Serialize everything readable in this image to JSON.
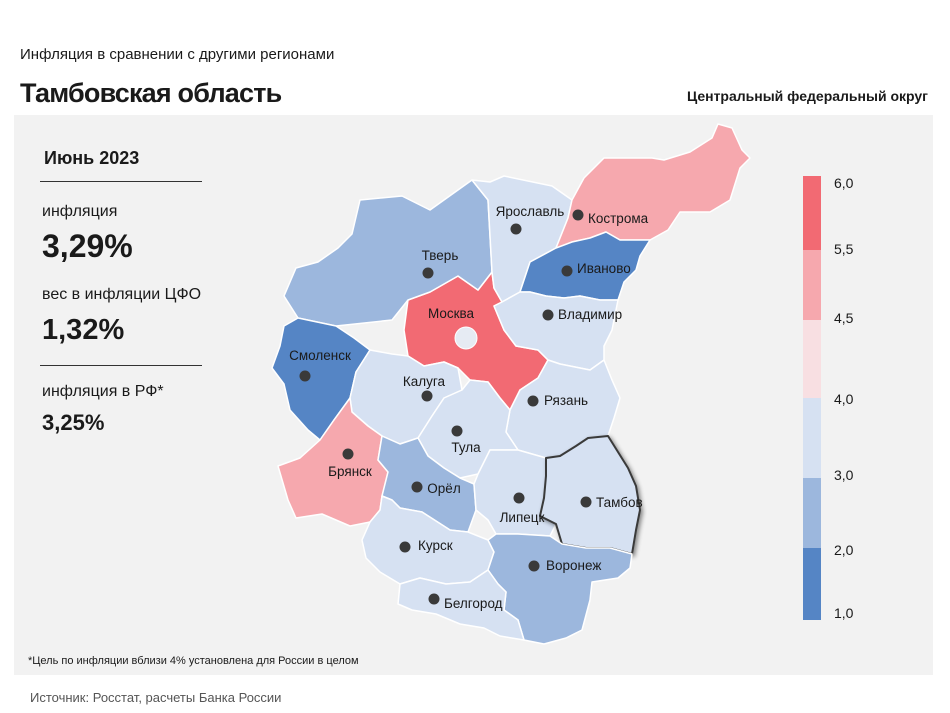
{
  "header": {
    "supertitle": "Инфляция  в сравнении  с другими  регионами",
    "title": "Тамбовская область",
    "district": "Центральный федеральный округ"
  },
  "summary": {
    "period": "Июнь 2023",
    "inflation_label": "инфляция",
    "inflation_value": "3,29%",
    "weight_label": "вес в инфляции  ЦФО",
    "weight_value": "1,32%",
    "rf_label": "инфляция  в РФ*",
    "rf_value": "3,25%"
  },
  "legend": {
    "ticks": [
      "1,0",
      "2,0",
      "3,0",
      "4,0",
      "4,5",
      "5,5",
      "6,0"
    ],
    "colors": [
      "#5585c5",
      "#9cb7dd",
      "#d6e1f2",
      "#f8dfe2",
      "#f6a8ae",
      "#f26a73"
    ]
  },
  "regions": [
    {
      "name": "Москва",
      "color": "#f26a73"
    },
    {
      "name": "Тверь",
      "color": "#9cb7dd"
    },
    {
      "name": "Ярославль",
      "color": "#d6e1f2"
    },
    {
      "name": "Кострома",
      "color": "#f6a8ae"
    },
    {
      "name": "Иваново",
      "color": "#5585c5"
    },
    {
      "name": "Владимир",
      "color": "#d6e1f2"
    },
    {
      "name": "Смоленск",
      "color": "#5585c5"
    },
    {
      "name": "Калуга",
      "color": "#d6e1f2"
    },
    {
      "name": "Рязань",
      "color": "#d6e1f2"
    },
    {
      "name": "Тула",
      "color": "#d6e1f2"
    },
    {
      "name": "Брянск",
      "color": "#f6a8ae"
    },
    {
      "name": "Орёл",
      "color": "#9cb7dd"
    },
    {
      "name": "Липецк",
      "color": "#d6e1f2"
    },
    {
      "name": "Тамбов",
      "color": "#d6e1f2"
    },
    {
      "name": "Курск",
      "color": "#d6e1f2"
    },
    {
      "name": "Воронеж",
      "color": "#9cb7dd"
    },
    {
      "name": "Белгород",
      "color": "#d6e1f2"
    }
  ],
  "footnote": "*Цель по инфляции вблизи 4% установлена для России в целом",
  "source": "Источник: Росстат, расчеты Банка России"
}
